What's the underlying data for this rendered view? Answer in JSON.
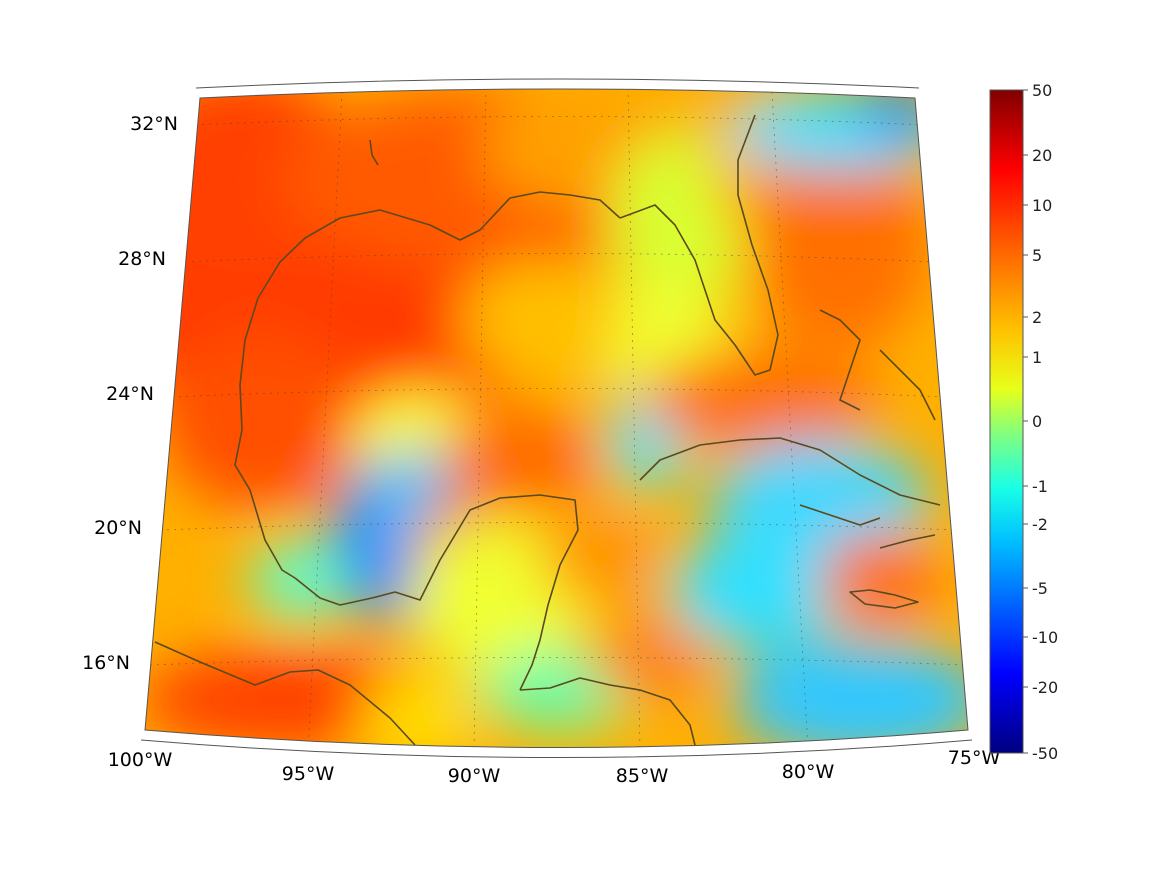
{
  "map": {
    "lon_labels": [
      "100°W",
      "95°W",
      "90°W",
      "85°W",
      "80°W",
      "75°W"
    ],
    "lat_labels": [
      "32°N",
      "28°N",
      "24°N",
      "20°N",
      "16°N"
    ],
    "extent": {
      "lon_min": -100,
      "lon_max": -75,
      "lat_min": 14.5,
      "lat_max": 33
    },
    "colormap": "jet",
    "coastline_color": "#5a4a1e"
  },
  "colorbar": {
    "ticks": [
      "50",
      "20",
      "10",
      "5",
      "2",
      "1",
      "0",
      "-1",
      "-2",
      "-5",
      "-10",
      "-20",
      "-50"
    ],
    "min": -50,
    "max": 50,
    "scale": "symmetric-log"
  }
}
